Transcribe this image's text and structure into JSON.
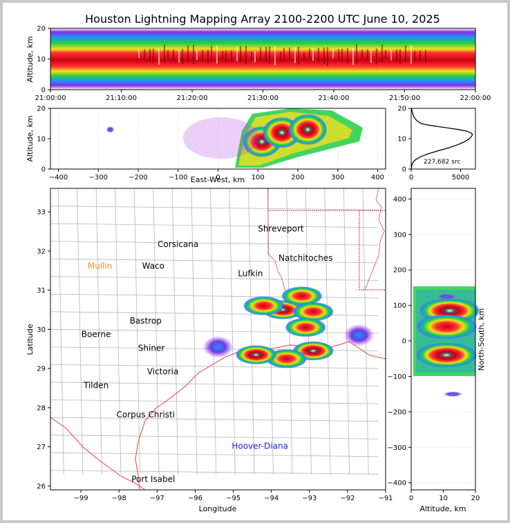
{
  "title": "Houston Lightning Mapping Array 2100-2200 UTC June 10, 2025",
  "colors": {
    "axis": "#000000",
    "county": "#b4b4b4",
    "state": "#cc2a2a",
    "coast": "#e04040",
    "station_orange": "#f08a3c",
    "station_blue": "#1a1ae6",
    "station_green": "#8ccc3c",
    "station_black": "#000000"
  },
  "chart_data": [
    {
      "id": "altitude-time",
      "type": "heatmap",
      "ylabel": "Altitude, km",
      "xlabel": "",
      "ylim": [
        0,
        20
      ],
      "yticks": [
        "0",
        "10",
        "20"
      ],
      "xticks": [
        "21:00:00",
        "21:10:00",
        "21:20:00",
        "21:30:00",
        "21:40:00",
        "21:50:00",
        "22:00:00"
      ],
      "xlim_minutes": [
        0,
        60
      ],
      "description_of_band": "continuous source band between about 2 and 20 km altitude, densest at 8-14 km"
    },
    {
      "id": "altitude-eastwest",
      "type": "heatmap",
      "xlabel": "East-West, km",
      "ylabel": "Altitude, km",
      "xlim": [
        -420,
        420
      ],
      "ylim": [
        0,
        20
      ],
      "xticks": [
        "−400",
        "−300",
        "−200",
        "−100",
        "0",
        "100",
        "200",
        "300",
        "400"
      ],
      "yticks": [
        "0",
        "10",
        "20"
      ],
      "cores": [
        {
          "x": 110,
          "alt": 9,
          "intensity": "high"
        },
        {
          "x": 160,
          "alt": 12,
          "intensity": "high"
        },
        {
          "x": 225,
          "alt": 13,
          "intensity": "high"
        },
        {
          "x": -270,
          "alt": 13,
          "intensity": "low"
        }
      ]
    },
    {
      "id": "altitude-histogram",
      "type": "line",
      "ylim": [
        0,
        20
      ],
      "xlim": [
        0,
        6500
      ],
      "xticks": [
        "0",
        "5000"
      ],
      "yticks": [
        "0",
        "10",
        "20"
      ],
      "annotation": "227,682 src",
      "x": [
        0,
        50,
        150,
        400,
        900,
        1700,
        2700,
        3800,
        4700,
        5400,
        5900,
        6150,
        6200,
        6000,
        5600,
        4800,
        3800,
        2700,
        1700,
        1000,
        550,
        300,
        180,
        100,
        60,
        30
      ],
      "y": [
        0,
        1,
        2,
        3,
        4,
        5,
        6,
        7,
        8,
        9,
        10,
        11,
        11.5,
        12,
        12.5,
        13,
        13.5,
        14,
        14.5,
        15,
        16,
        17,
        18,
        19,
        19.5,
        20
      ]
    },
    {
      "id": "plan-view",
      "type": "scatter",
      "xlabel": "Longitude",
      "ylabel": "Latitude",
      "xlim": [
        -99.8,
        -91
      ],
      "ylim": [
        25.9,
        33.6
      ],
      "xticks": [
        "−99",
        "−98",
        "−97",
        "−96",
        "−95",
        "−94",
        "−93",
        "−92",
        "−91"
      ],
      "yticks": [
        "26",
        "27",
        "28",
        "29",
        "30",
        "31",
        "32",
        "33"
      ],
      "storm_cells": [
        {
          "lon": -93.7,
          "lat": 30.5,
          "intensity": "high"
        },
        {
          "lon": -94.2,
          "lat": 30.6,
          "intensity": "medium"
        },
        {
          "lon": -93.2,
          "lat": 30.85,
          "intensity": "medium"
        },
        {
          "lon": -92.9,
          "lat": 30.45,
          "intensity": "medium"
        },
        {
          "lon": -93.1,
          "lat": 30.05,
          "intensity": "medium"
        },
        {
          "lon": -92.9,
          "lat": 29.45,
          "intensity": "high"
        },
        {
          "lon": -93.6,
          "lat": 29.25,
          "intensity": "medium"
        },
        {
          "lon": -94.4,
          "lat": 29.35,
          "intensity": "high"
        },
        {
          "lon": -95.4,
          "lat": 29.55,
          "intensity": "low"
        },
        {
          "lon": -91.7,
          "lat": 29.85,
          "intensity": "low"
        }
      ]
    },
    {
      "id": "altitude-northsouth",
      "type": "heatmap",
      "xlabel": "Altitude, km",
      "ylabel": "North-South, km",
      "xlim": [
        0,
        20
      ],
      "ylim": [
        -420,
        430
      ],
      "xticks": [
        "0",
        "10",
        "20"
      ],
      "yticks": [
        "−400",
        "−300",
        "−200",
        "−100",
        "0",
        "100",
        "200",
        "300",
        "400"
      ],
      "cores": [
        {
          "y": 85,
          "alt": 12,
          "intensity": "high"
        },
        {
          "y": 40,
          "alt": 11,
          "intensity": "medium"
        },
        {
          "y": -40,
          "alt": 11,
          "intensity": "high"
        },
        {
          "y": 125,
          "alt": 11,
          "intensity": "low"
        },
        {
          "y": -150,
          "alt": 13,
          "intensity": "low"
        }
      ]
    }
  ],
  "map_labels": [
    {
      "text": "Shreveport",
      "lon": -93.75,
      "lat": 32.5,
      "color": "station_black"
    },
    {
      "text": "Corsicana",
      "lon": -96.45,
      "lat": 32.1,
      "color": "station_black"
    },
    {
      "text": "Natchitoches",
      "lon": -93.1,
      "lat": 31.75,
      "color": "station_black"
    },
    {
      "text": "Mullin",
      "lon": -98.5,
      "lat": 31.55,
      "color": "station_orange"
    },
    {
      "text": "Waco",
      "lon": -97.1,
      "lat": 31.55,
      "color": "station_black"
    },
    {
      "text": "Lufkin",
      "lon": -94.55,
      "lat": 31.35,
      "color": "station_black"
    },
    {
      "text": "Bastrop",
      "lon": -97.3,
      "lat": 30.15,
      "color": "station_black"
    },
    {
      "text": "Boerne",
      "lon": -98.6,
      "lat": 29.8,
      "color": "station_black"
    },
    {
      "text": "Shiner",
      "lon": -97.15,
      "lat": 29.45,
      "color": "station_black"
    },
    {
      "text": "Victoria",
      "lon": -96.85,
      "lat": 28.85,
      "color": "station_black"
    },
    {
      "text": "Tilden",
      "lon": -98.6,
      "lat": 28.5,
      "color": "station_black"
    },
    {
      "text": "Corpus Christi",
      "lon": -97.3,
      "lat": 27.75,
      "color": "station_black"
    },
    {
      "text": "Hoover-Diana",
      "lon": -94.3,
      "lat": 26.95,
      "color": "station_blue"
    },
    {
      "text": "Port Isabel",
      "lon": -97.1,
      "lat": 26.1,
      "color": "station_black"
    }
  ]
}
